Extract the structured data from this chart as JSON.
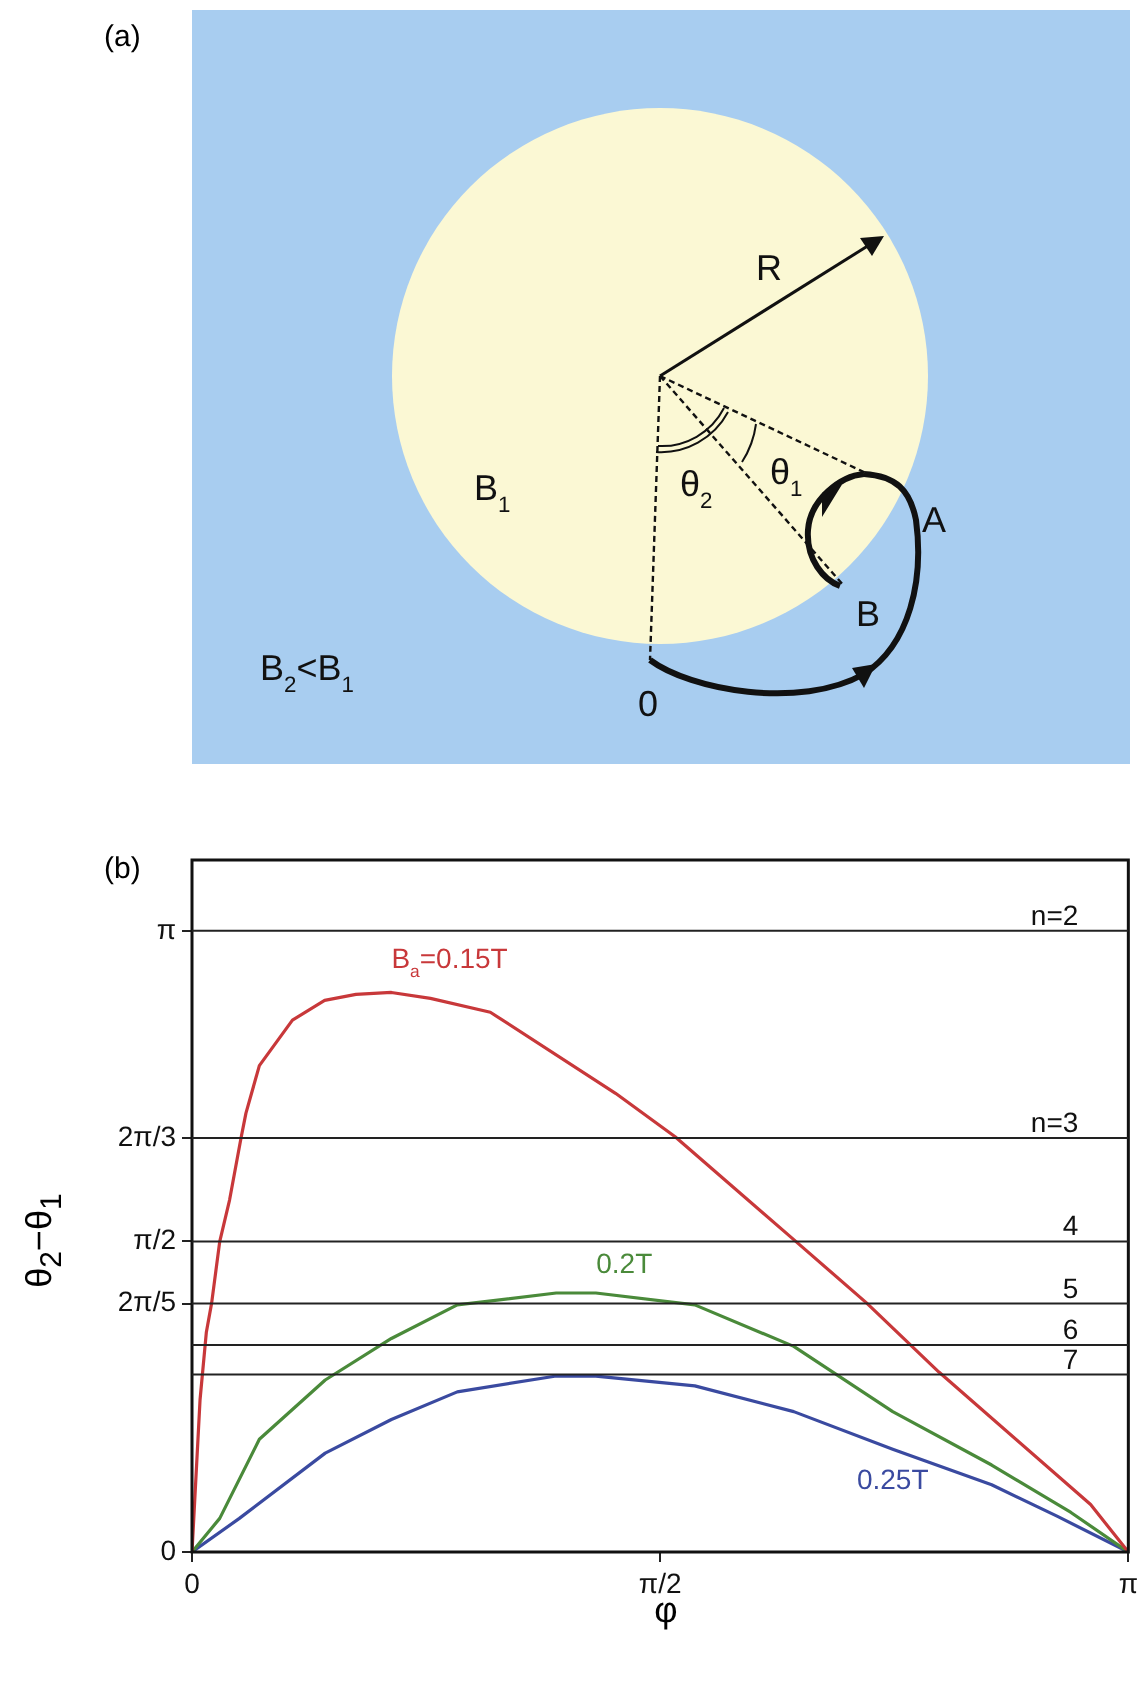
{
  "chart_data": [
    {
      "type": "other",
      "title": "(a)",
      "annotations": [
        "R",
        "B$_{1}$",
        "θ$_{2}$",
        "θ$_{1}$",
        "A",
        "B",
        "0",
        "B$_{2}$<B$_{1}$"
      ]
    },
    {
      "type": "line",
      "title": "(b)",
      "xlabel": "φ",
      "ylabel": "θ$_{2}$−θ$_{1}$",
      "xlim": [
        0,
        3.1416
      ],
      "xticks": [
        0,
        {
          "value": 1.5708,
          "label": "π/2"
        },
        {
          "value": 3.1416,
          "label": "π"
        }
      ],
      "ylim": [
        0,
        3.5
      ],
      "yticks": [
        0,
        {
          "value": 1.2566,
          "label": "2π/5"
        },
        {
          "value": 1.5708,
          "label": "π/2"
        },
        {
          "value": 2.0944,
          "label": "2π/3"
        },
        {
          "value": 3.1416,
          "label": "π"
        }
      ],
      "grid": false,
      "series": [
        {
          "name": "B$_{a}$=0.15T",
          "color": "#c8383a",
          "x": [
            0,
            0.027,
            0.048,
            0.066,
            0.093,
            0.126,
            0.164,
            0.181,
            0.226,
            0.337,
            0.445,
            0.55,
            0.669,
            0.8,
            1.001,
            1.421,
            1.621,
            2.019,
            2.263,
            2.506,
            3.015,
            3.1416
          ],
          "values": [
            0,
            0.77,
            1.11,
            1.26,
            1.57,
            1.78,
            2.09,
            2.22,
            2.46,
            2.69,
            2.79,
            2.82,
            2.83,
            2.8,
            2.73,
            2.32,
            2.1,
            1.58,
            1.26,
            0.91,
            0.24,
            0
          ]
        },
        {
          "name": "0.2T",
          "color": "#4a8a3a",
          "x": [
            0,
            0.093,
            0.226,
            0.447,
            0.669,
            0.89,
            1.222,
            1.355,
            1.687,
            2.019,
            2.351,
            2.683,
            2.949,
            3.1416
          ],
          "values": [
            0,
            0.17,
            0.57,
            0.87,
            1.08,
            1.25,
            1.31,
            1.31,
            1.25,
            1.04,
            0.71,
            0.44,
            0.2,
            0
          ]
        },
        {
          "name": "0.25T",
          "color": "#3a4aa0",
          "x": [
            0,
            0.159,
            0.447,
            0.669,
            0.89,
            1.222,
            1.355,
            1.687,
            2.019,
            2.351,
            2.683,
            2.904,
            3.1416
          ],
          "values": [
            0,
            0.17,
            0.5,
            0.67,
            0.81,
            0.89,
            0.89,
            0.84,
            0.71,
            0.52,
            0.34,
            0.18,
            0
          ]
        }
      ],
      "ref_lines": [
        {
          "axis": "y",
          "value": 3.1416
        },
        {
          "axis": "y",
          "value": 2.0944
        },
        {
          "axis": "y",
          "value": 1.5708
        },
        {
          "axis": "y",
          "value": 1.2566
        },
        {
          "axis": "y",
          "value": 1.0472
        },
        {
          "axis": "y",
          "value": 0.8976
        }
      ],
      "annotations": [
        "n=2",
        "n=3",
        "4",
        "5",
        "6",
        "7"
      ]
    }
  ]
}
